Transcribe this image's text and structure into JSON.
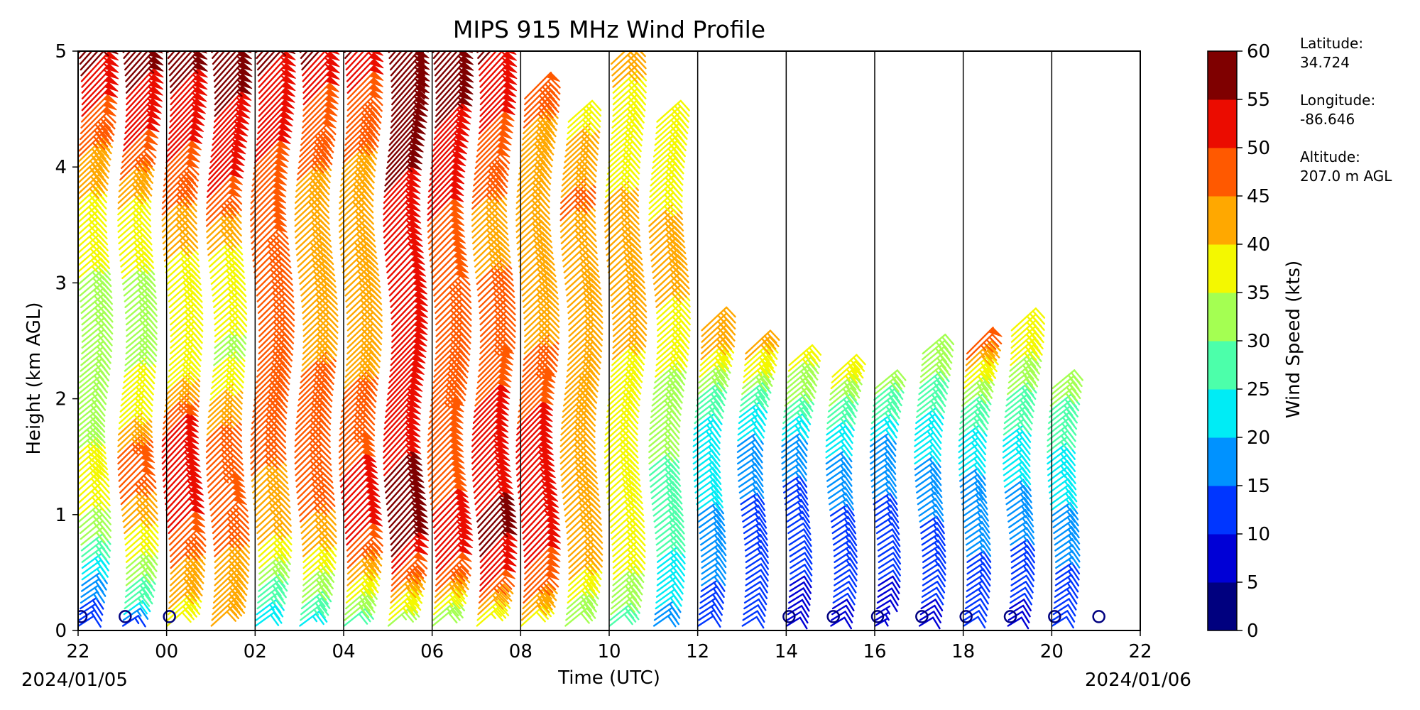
{
  "chart_data": {
    "type": "wind-barb-profile",
    "title": "MIPS 915 MHz Wind Profile",
    "xlabel": "Time (UTC)",
    "ylabel": "Height (km AGL)",
    "x_tick_labels": [
      "22",
      "00",
      "02",
      "04",
      "06",
      "08",
      "10",
      "12",
      "14",
      "16",
      "18",
      "20",
      "22"
    ],
    "date_start": "2024/01/05",
    "date_end": "2024/01/06",
    "xlim_hours_utc": [
      22,
      46
    ],
    "ylim_km": [
      0,
      5
    ],
    "y_ticks": [
      0,
      1,
      2,
      3,
      4,
      5
    ],
    "colorbar": {
      "label": "Wind Speed (kts)",
      "ticks": [
        0,
        5,
        10,
        15,
        20,
        25,
        30,
        35,
        40,
        45,
        50,
        55,
        60
      ],
      "bins": [
        "#00007f",
        "#0000d6",
        "#0036ff",
        "#0092ff",
        "#00ecf5",
        "#4cffaa",
        "#a4ff52",
        "#f4f800",
        "#ffa800",
        "#ff5900",
        "#eb0c00",
        "#7f0000"
      ]
    },
    "series": [
      {
        "time_label": "22:30",
        "max_height_km": 5.0,
        "profile": [
          [
            0.0,
            12
          ],
          [
            0.2,
            14
          ],
          [
            0.5,
            22
          ],
          [
            0.8,
            32
          ],
          [
            1.2,
            40
          ],
          [
            1.8,
            30
          ],
          [
            2.5,
            32
          ],
          [
            3.5,
            38
          ],
          [
            4.0,
            44
          ],
          [
            5.0,
            58
          ]
        ]
      },
      {
        "time_label": "23:30",
        "max_height_km": 5.0,
        "profile": [
          [
            0.0,
            10
          ],
          [
            0.2,
            26
          ],
          [
            0.6,
            36
          ],
          [
            0.9,
            42
          ],
          [
            1.3,
            50
          ],
          [
            1.7,
            40
          ],
          [
            2.5,
            32
          ],
          [
            3.5,
            38
          ],
          [
            4.2,
            52
          ],
          [
            5.0,
            58
          ]
        ]
      },
      {
        "time_label": "00:30",
        "max_height_km": 5.0,
        "profile": [
          [
            0.0,
            38
          ],
          [
            0.3,
            42
          ],
          [
            0.7,
            48
          ],
          [
            1.0,
            54
          ],
          [
            1.6,
            52
          ],
          [
            2.2,
            36
          ],
          [
            3.0,
            38
          ],
          [
            4.0,
            50
          ],
          [
            5.0,
            58
          ]
        ]
      },
      {
        "time_label": "01:30",
        "max_height_km": 5.0,
        "profile": [
          [
            0.0,
            40
          ],
          [
            0.5,
            44
          ],
          [
            1.0,
            48
          ],
          [
            1.6,
            46
          ],
          [
            2.3,
            34
          ],
          [
            3.2,
            40
          ],
          [
            3.8,
            52
          ],
          [
            5.0,
            58
          ]
        ]
      },
      {
        "time_label": "02:30",
        "max_height_km": 5.0,
        "profile": [
          [
            0.0,
            20
          ],
          [
            0.3,
            28
          ],
          [
            0.6,
            38
          ],
          [
            1.0,
            44
          ],
          [
            1.6,
            46
          ],
          [
            2.5,
            46
          ],
          [
            3.5,
            48
          ],
          [
            4.5,
            52
          ],
          [
            5.0,
            58
          ]
        ]
      },
      {
        "time_label": "03:30",
        "max_height_km": 5.0,
        "profile": [
          [
            0.0,
            22
          ],
          [
            0.2,
            30
          ],
          [
            0.6,
            40
          ],
          [
            1.0,
            46
          ],
          [
            1.7,
            47
          ],
          [
            2.5,
            44
          ],
          [
            3.5,
            42
          ],
          [
            4.5,
            50
          ],
          [
            5.0,
            58
          ]
        ]
      },
      {
        "time_label": "04:30",
        "max_height_km": 5.0,
        "profile": [
          [
            0.0,
            28
          ],
          [
            0.3,
            38
          ],
          [
            0.7,
            50
          ],
          [
            1.2,
            52
          ],
          [
            1.6,
            46
          ],
          [
            2.5,
            44
          ],
          [
            3.5,
            42
          ],
          [
            4.5,
            48
          ],
          [
            5.0,
            56
          ]
        ]
      },
      {
        "time_label": "05:30",
        "max_height_km": 5.0,
        "profile": [
          [
            0.0,
            32
          ],
          [
            0.3,
            44
          ],
          [
            0.6,
            55
          ],
          [
            1.0,
            56
          ],
          [
            1.6,
            54
          ],
          [
            2.5,
            50
          ],
          [
            3.5,
            54
          ],
          [
            4.5,
            58
          ],
          [
            5.0,
            58
          ]
        ]
      },
      {
        "time_label": "06:30",
        "max_height_km": 5.0,
        "profile": [
          [
            0.0,
            30
          ],
          [
            0.2,
            40
          ],
          [
            0.6,
            55
          ],
          [
            1.0,
            50
          ],
          [
            1.6,
            48
          ],
          [
            2.5,
            46
          ],
          [
            3.5,
            50
          ],
          [
            4.5,
            56
          ],
          [
            5.0,
            58
          ]
        ]
      },
      {
        "time_label": "07:30",
        "max_height_km": 5.0,
        "profile": [
          [
            0.0,
            34
          ],
          [
            0.3,
            50
          ],
          [
            0.7,
            56
          ],
          [
            1.2,
            54
          ],
          [
            1.6,
            52
          ],
          [
            2.5,
            46
          ],
          [
            3.5,
            44
          ],
          [
            4.5,
            52
          ],
          [
            5.0,
            56
          ]
        ]
      },
      {
        "time_label": "08:30",
        "max_height_km": 4.6,
        "profile": [
          [
            0.0,
            38
          ],
          [
            0.3,
            48
          ],
          [
            0.7,
            52
          ],
          [
            1.2,
            54
          ],
          [
            1.5,
            52
          ],
          [
            2.5,
            44
          ],
          [
            3.5,
            40
          ],
          [
            4.0,
            42
          ],
          [
            4.6,
            48
          ]
        ]
      },
      {
        "time_label": "09:30",
        "max_height_km": 4.4,
        "profile": [
          [
            0.0,
            30
          ],
          [
            0.4,
            40
          ],
          [
            1.0,
            44
          ],
          [
            1.6,
            44
          ],
          [
            2.3,
            42
          ],
          [
            3.0,
            40
          ],
          [
            3.6,
            46
          ],
          [
            4.4,
            38
          ]
        ]
      },
      {
        "time_label": "10:30",
        "max_height_km": 4.9,
        "profile": [
          [
            0.0,
            28
          ],
          [
            0.5,
            36
          ],
          [
            1.0,
            40
          ],
          [
            1.7,
            38
          ],
          [
            2.3,
            40
          ],
          [
            3.5,
            42
          ],
          [
            4.2,
            36
          ],
          [
            4.9,
            42
          ]
        ]
      },
      {
        "time_label": "11:30",
        "max_height_km": 4.4,
        "profile": [
          [
            0.0,
            18
          ],
          [
            0.5,
            24
          ],
          [
            1.0,
            28
          ],
          [
            1.8,
            32
          ],
          [
            2.5,
            38
          ],
          [
            3.0,
            42
          ],
          [
            3.5,
            40
          ],
          [
            4.4,
            38
          ]
        ]
      },
      {
        "time_label": "12:30",
        "max_height_km": 2.6,
        "profile": [
          [
            0.0,
            12
          ],
          [
            0.5,
            16
          ],
          [
            1.0,
            20
          ],
          [
            1.6,
            22
          ],
          [
            2.0,
            30
          ],
          [
            2.3,
            40
          ],
          [
            2.6,
            42
          ]
        ]
      },
      {
        "time_label": "13:30",
        "max_height_km": 2.4,
        "profile": [
          [
            0.0,
            10
          ],
          [
            0.5,
            12
          ],
          [
            1.0,
            14
          ],
          [
            1.5,
            18
          ],
          [
            1.9,
            26
          ],
          [
            2.2,
            38
          ],
          [
            2.4,
            42
          ]
        ]
      },
      {
        "time_label": "14:30",
        "max_height_km": 2.3,
        "profile": [
          [
            0.0,
            8
          ],
          [
            0.4,
            10
          ],
          [
            0.8,
            12
          ],
          [
            1.2,
            14
          ],
          [
            1.6,
            20
          ],
          [
            1.9,
            30
          ],
          [
            2.3,
            36
          ]
        ]
      },
      {
        "time_label": "15:30",
        "max_height_km": 2.2,
        "profile": [
          [
            0.0,
            8
          ],
          [
            0.4,
            12
          ],
          [
            0.8,
            14
          ],
          [
            1.2,
            16
          ],
          [
            1.6,
            22
          ],
          [
            1.9,
            30
          ],
          [
            2.2,
            40
          ]
        ]
      },
      {
        "time_label": "16:30",
        "max_height_km": 2.1,
        "profile": [
          [
            0.0,
            6
          ],
          [
            0.4,
            10
          ],
          [
            0.8,
            12
          ],
          [
            1.2,
            16
          ],
          [
            1.6,
            20
          ],
          [
            1.9,
            28
          ],
          [
            2.1,
            32
          ]
        ]
      },
      {
        "time_label": "17:30",
        "max_height_km": 2.4,
        "profile": [
          [
            0.0,
            8
          ],
          [
            0.4,
            12
          ],
          [
            0.8,
            14
          ],
          [
            1.2,
            18
          ],
          [
            1.6,
            22
          ],
          [
            2.0,
            28
          ],
          [
            2.4,
            34
          ]
        ]
      },
      {
        "time_label": "18:30",
        "max_height_km": 2.4,
        "profile": [
          [
            0.0,
            10
          ],
          [
            0.4,
            14
          ],
          [
            0.8,
            16
          ],
          [
            1.2,
            18
          ],
          [
            1.6,
            24
          ],
          [
            2.0,
            32
          ],
          [
            2.4,
            48
          ]
        ]
      },
      {
        "time_label": "19:30",
        "max_height_km": 2.6,
        "profile": [
          [
            0.0,
            8
          ],
          [
            0.4,
            12
          ],
          [
            0.8,
            16
          ],
          [
            1.2,
            20
          ],
          [
            1.6,
            24
          ],
          [
            2.0,
            30
          ],
          [
            2.4,
            38
          ],
          [
            2.6,
            40
          ]
        ]
      },
      {
        "time_label": "20:30",
        "max_height_km": 2.1,
        "profile": [
          [
            0.0,
            10
          ],
          [
            0.4,
            14
          ],
          [
            0.8,
            18
          ],
          [
            1.2,
            22
          ],
          [
            1.6,
            26
          ],
          [
            1.9,
            30
          ],
          [
            2.1,
            32
          ]
        ]
      }
    ],
    "calm_markers_hours": [
      22.0,
      23.0,
      24.0,
      38.0,
      39.0,
      40.0,
      41.0,
      42.0,
      43.0,
      44.0,
      45.0
    ]
  },
  "site": {
    "latitude_label": "Latitude:",
    "latitude_value": "34.724",
    "longitude_label": "Longitude:",
    "longitude_value": "-86.646",
    "altitude_label": "Altitude:",
    "altitude_value": "207.0 m AGL"
  }
}
